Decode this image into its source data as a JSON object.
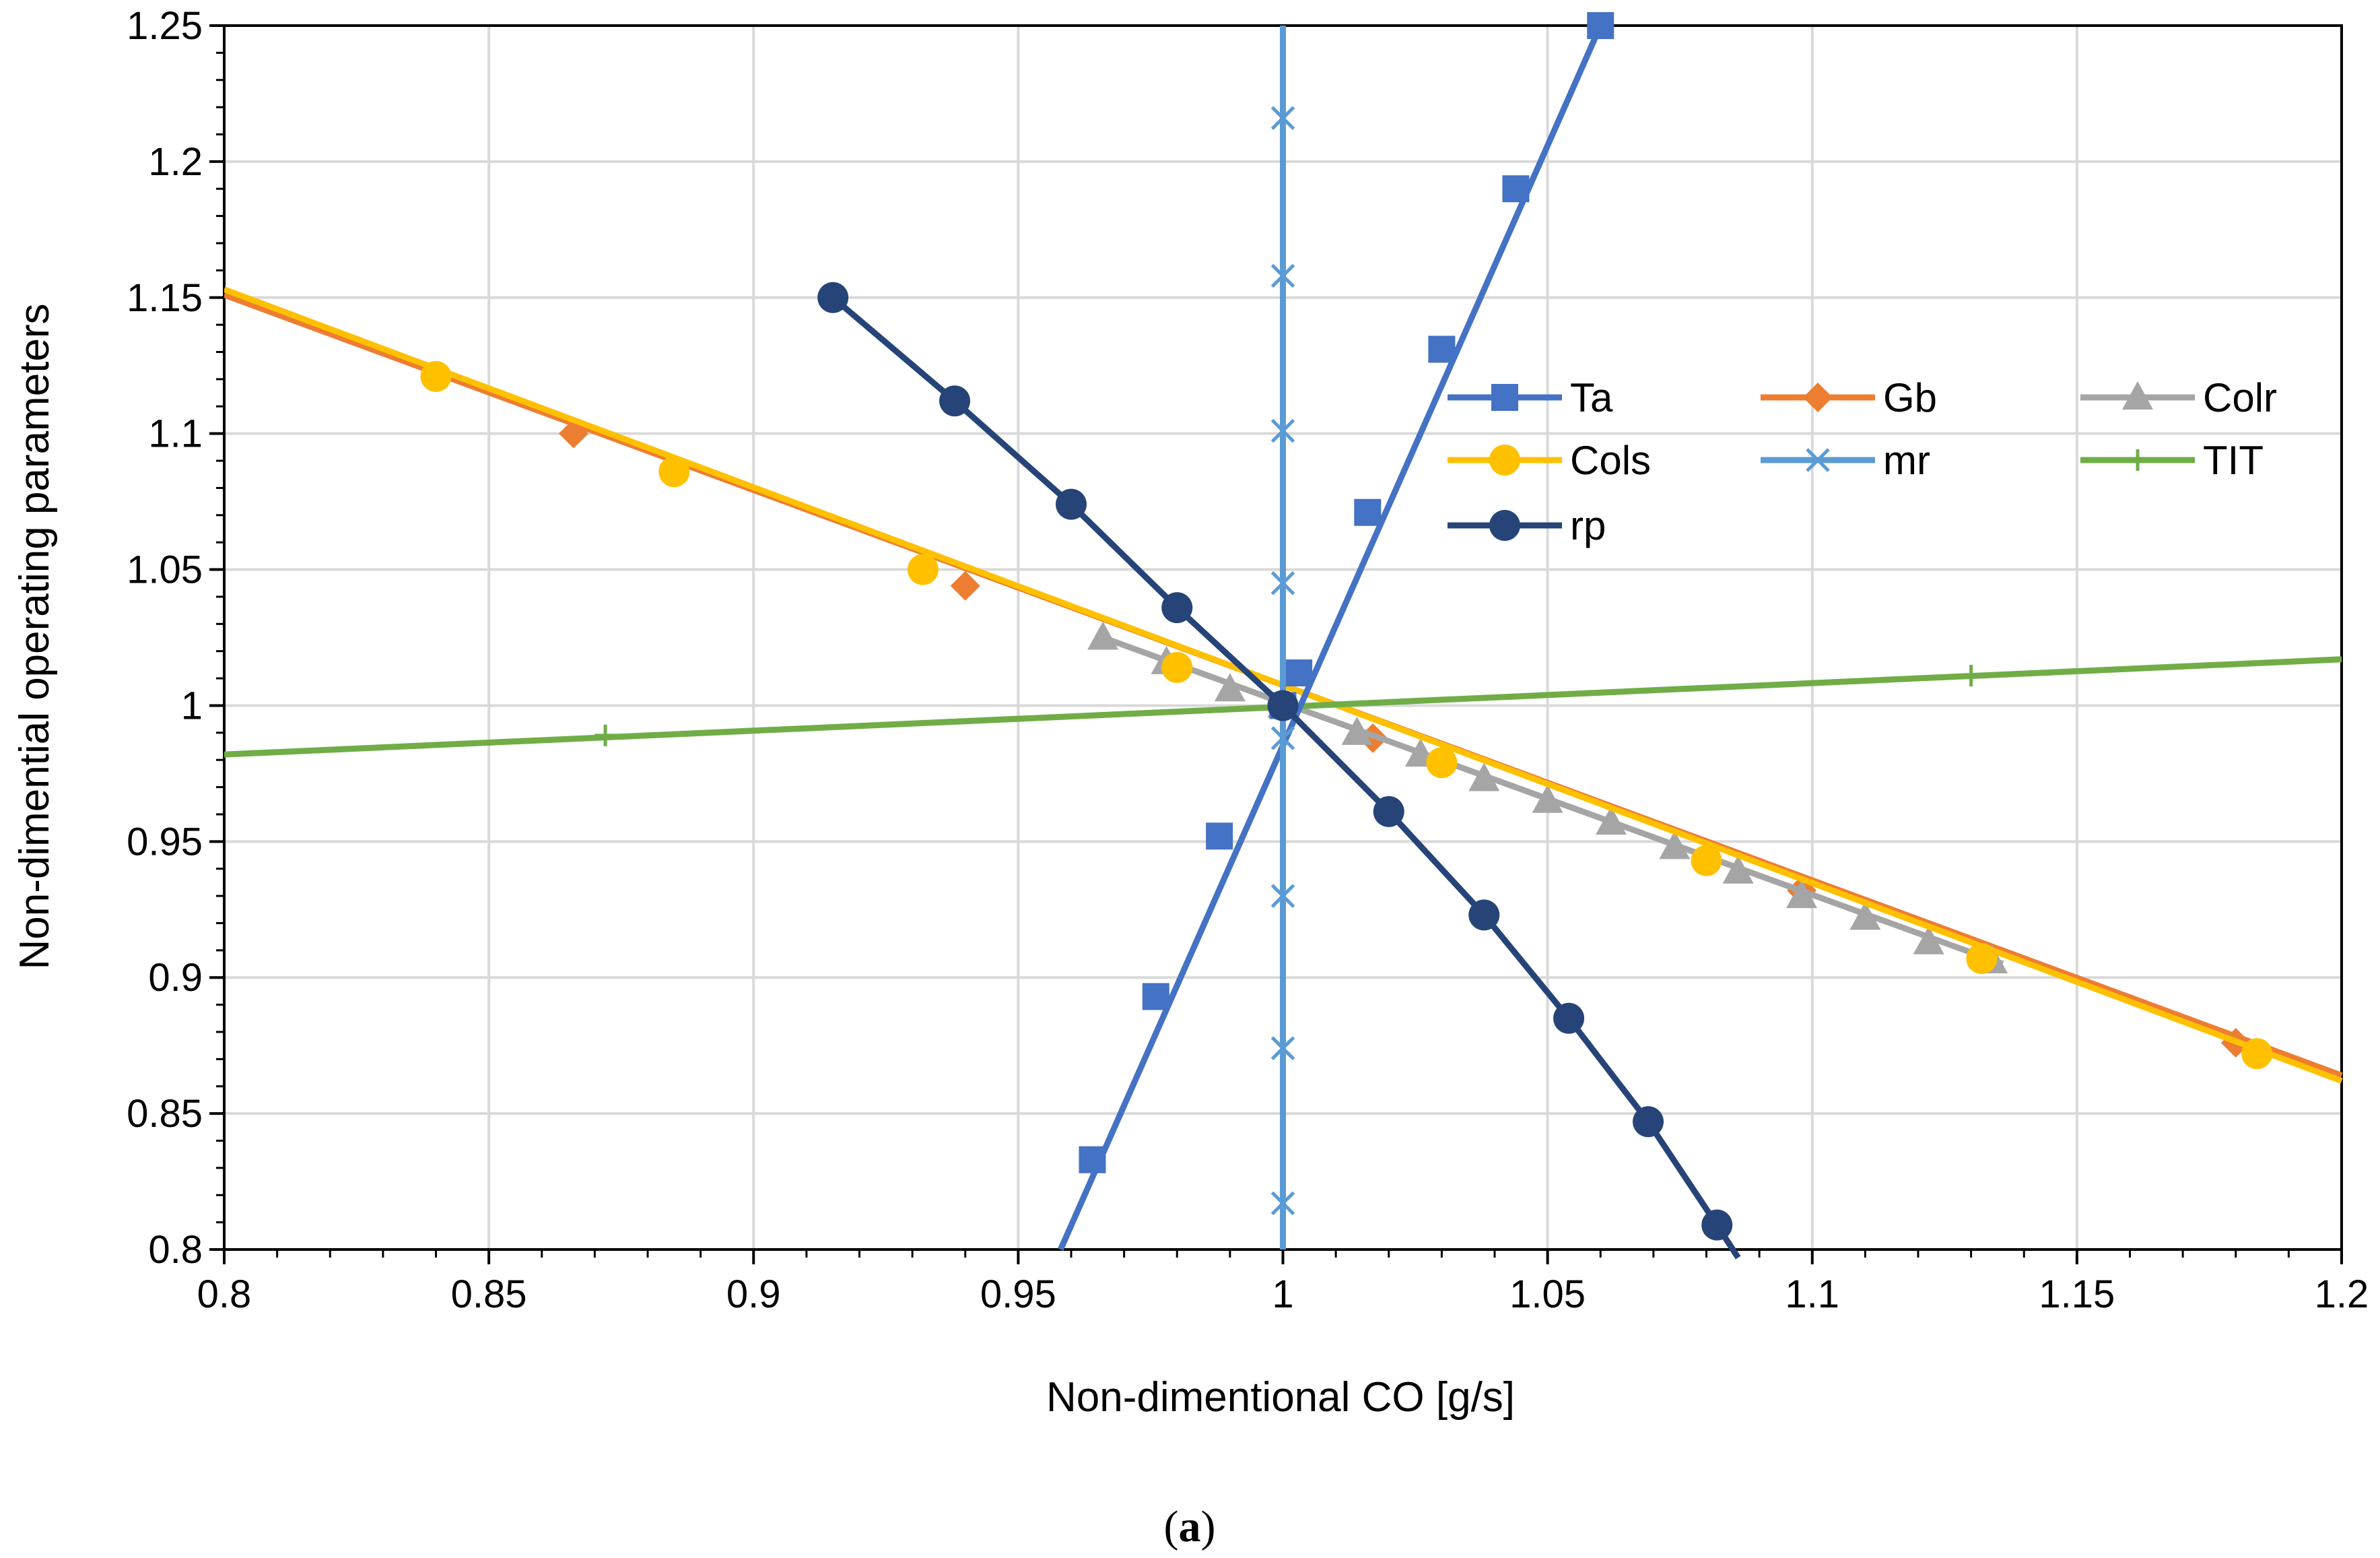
{
  "chart_data": {
    "type": "line",
    "xlabel": "Non-dimentional CO [g/s]",
    "ylabel": "Non-dimential operating parameters",
    "xlim": [
      0.8,
      1.2
    ],
    "ylim": [
      0.8,
      1.25
    ],
    "xticks": [
      0.8,
      0.85,
      0.9,
      0.95,
      1,
      1.05,
      1.1,
      1.15,
      1.2
    ],
    "yticks": [
      0.8,
      0.85,
      0.9,
      0.95,
      1,
      1.05,
      1.1,
      1.15,
      1.2,
      1.25
    ],
    "xtick_labels": [
      "0.8",
      "0.85",
      "0.9",
      "0.95",
      "1",
      "1.05",
      "1.1",
      "1.15",
      "1.2"
    ],
    "ytick_labels": [
      "0.8",
      "0.85",
      "0.9",
      "0.95",
      "1",
      "1.05",
      "1.1",
      "1.15",
      "1.2",
      "1.25"
    ],
    "grid": true,
    "legend_position": "upper-right inside plot",
    "caption_open": "(",
    "caption_letter": "a",
    "caption_close": ")",
    "series": [
      {
        "name": "Ta",
        "color": "#4472C4",
        "marker": "square",
        "line": [
          [
            0.958,
            0.8
          ],
          [
            1.06,
            1.25
          ]
        ],
        "markers": [
          [
            0.964,
            0.833
          ],
          [
            0.976,
            0.893
          ],
          [
            0.988,
            0.952
          ],
          [
            1.0,
            1.0
          ],
          [
            1.003,
            1.012
          ],
          [
            1.016,
            1.071
          ],
          [
            1.03,
            1.131
          ],
          [
            1.044,
            1.19
          ],
          [
            1.06,
            1.25
          ]
        ]
      },
      {
        "name": "Gb",
        "color": "#ED7D31",
        "marker": "diamond",
        "line": [
          [
            0.8,
            1.151
          ],
          [
            1.2,
            0.864
          ]
        ],
        "markers": [
          [
            0.866,
            1.1
          ],
          [
            0.94,
            1.044
          ],
          [
            1.0,
            1.0
          ],
          [
            1.017,
            0.988
          ],
          [
            1.098,
            0.932
          ],
          [
            1.18,
            0.876
          ]
        ]
      },
      {
        "name": "Colr",
        "color": "#A5A5A5",
        "marker": "triangle",
        "line": [
          [
            0.966,
            1.025
          ],
          [
            1.136,
            0.905
          ]
        ],
        "markers": [
          [
            0.966,
            1.025
          ],
          [
            0.978,
            1.016
          ],
          [
            0.99,
            1.006
          ],
          [
            1.0,
            1.0
          ],
          [
            1.014,
            0.99
          ],
          [
            1.026,
            0.982
          ],
          [
            1.038,
            0.973
          ],
          [
            1.05,
            0.965
          ],
          [
            1.062,
            0.957
          ],
          [
            1.074,
            0.948
          ],
          [
            1.086,
            0.939
          ],
          [
            1.098,
            0.93
          ],
          [
            1.11,
            0.922
          ],
          [
            1.122,
            0.913
          ],
          [
            1.134,
            0.906
          ]
        ]
      },
      {
        "name": "Cols",
        "color": "#FFC000",
        "marker": "circle",
        "line": [
          [
            0.8,
            1.153
          ],
          [
            1.2,
            0.862
          ]
        ],
        "markers": [
          [
            0.84,
            1.121
          ],
          [
            0.885,
            1.086
          ],
          [
            0.932,
            1.05
          ],
          [
            0.98,
            1.014
          ],
          [
            1.0,
            1.0
          ],
          [
            1.03,
            0.979
          ],
          [
            1.08,
            0.943
          ],
          [
            1.132,
            0.907
          ],
          [
            1.184,
            0.872
          ]
        ]
      },
      {
        "name": "mr",
        "color": "#5B9BD5",
        "marker": "x",
        "line": [
          [
            1.0,
            0.8
          ],
          [
            1.0,
            1.25
          ]
        ],
        "markers": [
          [
            1.0,
            0.817
          ],
          [
            1.0,
            0.874
          ],
          [
            1.0,
            0.93
          ],
          [
            1.0,
            0.988
          ],
          [
            1.0,
            1.045
          ],
          [
            1.0,
            1.101
          ],
          [
            1.0,
            1.158
          ],
          [
            1.0,
            1.216
          ]
        ]
      },
      {
        "name": "TIT",
        "color": "#70AD47",
        "marker": "plus",
        "line": [
          [
            0.8,
            0.982
          ],
          [
            1.2,
            1.017
          ]
        ],
        "markers": [
          [
            0.872,
            0.989
          ],
          [
            1.0,
            1.0
          ],
          [
            1.13,
            1.011
          ]
        ]
      },
      {
        "name": "rp",
        "color": "#264478",
        "marker": "circle",
        "line": [
          [
            0.915,
            1.15
          ],
          [
            0.938,
            1.112
          ],
          [
            0.96,
            1.074
          ],
          [
            0.98,
            1.036
          ],
          [
            1.0,
            1.0
          ],
          [
            1.02,
            0.961
          ],
          [
            1.038,
            0.923
          ],
          [
            1.054,
            0.885
          ],
          [
            1.069,
            0.847
          ],
          [
            1.082,
            0.809
          ],
          [
            1.086,
            0.797
          ]
        ],
        "markers": [
          [
            0.915,
            1.15
          ],
          [
            0.938,
            1.112
          ],
          [
            0.96,
            1.074
          ],
          [
            0.98,
            1.036
          ],
          [
            1.0,
            1.0
          ],
          [
            1.02,
            0.961
          ],
          [
            1.038,
            0.923
          ],
          [
            1.054,
            0.885
          ],
          [
            1.069,
            0.847
          ],
          [
            1.082,
            0.809
          ]
        ]
      }
    ],
    "draw_order": [
      "Gb",
      "Colr",
      "Cols",
      "TIT",
      "Ta",
      "mr",
      "rp"
    ],
    "legend_order": [
      "Ta",
      "Gb",
      "Colr",
      "Cols",
      "mr",
      "TIT",
      "rp"
    ]
  }
}
